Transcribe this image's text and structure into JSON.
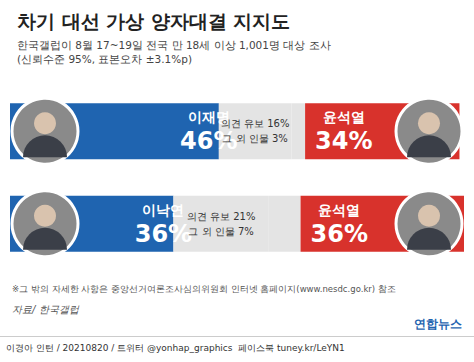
{
  "chart_data": {
    "type": "bar",
    "orientation": "horizontal",
    "stacked": true,
    "data_labels": true,
    "tick_labels": false,
    "grid": false,
    "title": "차기 대선 가상 양자대결 지지도",
    "subtitle": "한국갤럽이 8월 17~19일 전국 만 18세 이상 1,001명 대상 조사\n(신뢰수준 95%, 표본오차 ±3.1%p)",
    "xlim": [
      0,
      100
    ],
    "rows": [
      {
        "segments": [
          {
            "name": "이재명",
            "value": 46,
            "label": "46%",
            "color": "#1f64b0"
          },
          {
            "name": "의견 유보",
            "value": 16,
            "label": "16%",
            "color": "#e4e4e4"
          },
          {
            "name": "그 외 인물",
            "value": 3,
            "label": "3%",
            "color": "#e4e4e4"
          },
          {
            "name": "윤석열",
            "value": 34,
            "label": "34%",
            "color": "#d8322c"
          }
        ]
      },
      {
        "segments": [
          {
            "name": "이낙연",
            "value": 36,
            "label": "36%",
            "color": "#1f64b0"
          },
          {
            "name": "의견 유보",
            "value": 21,
            "label": "21%",
            "color": "#e4e4e4"
          },
          {
            "name": "그 외 인물",
            "value": 7,
            "label": "7%",
            "color": "#e4e4e4"
          },
          {
            "name": "윤석열",
            "value": 36,
            "label": "36%",
            "color": "#d8322c"
          }
        ]
      }
    ],
    "note": "※그 밖의 자세한 사항은 중앙선거여론조사심의위원회 인터넷 홈페이지(www.nesdc.go.kr) 참조",
    "source": "자료/ 한국갤럽",
    "logo": "연합뉴스",
    "credit": "이경아 인턴 / 20210820 / 트위터 @yonhap_graphics  페이스북 tuney.kr/LeYN1"
  }
}
